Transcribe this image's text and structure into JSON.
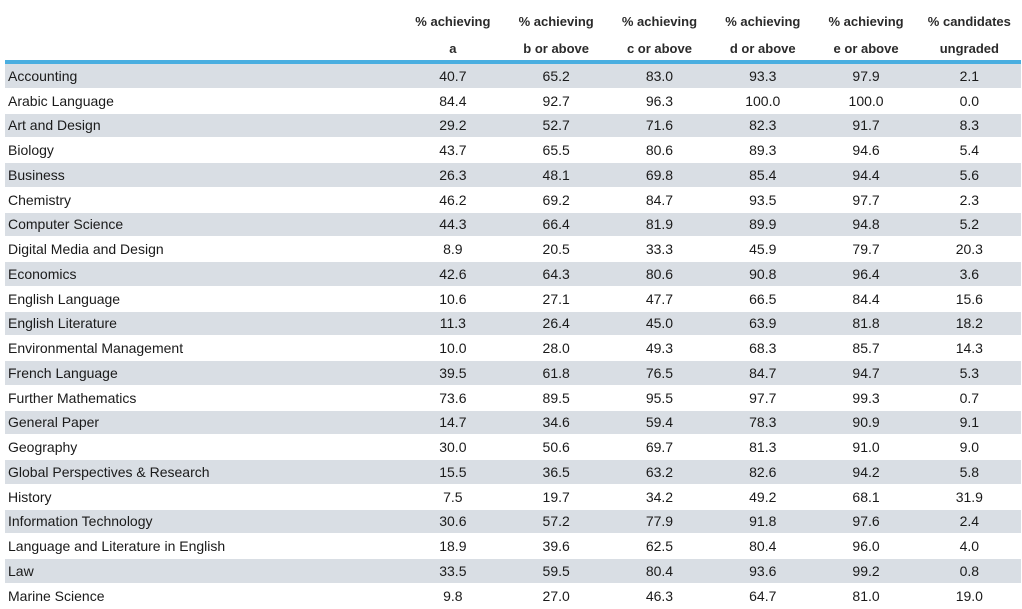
{
  "headers": [
    {
      "line1": "% achieving",
      "line2": "a"
    },
    {
      "line1": "% achieving",
      "line2": "b or above"
    },
    {
      "line1": "% achieving",
      "line2": "c or above"
    },
    {
      "line1": "% achieving",
      "line2": "d or above"
    },
    {
      "line1": "% achieving",
      "line2": "e or above"
    },
    {
      "line1": "% candidates",
      "line2": "ungraded"
    }
  ],
  "rows": [
    {
      "subject": "Accounting",
      "values": [
        "40.7",
        "65.2",
        "83.0",
        "93.3",
        "97.9",
        "2.1"
      ]
    },
    {
      "subject": "Arabic Language",
      "values": [
        "84.4",
        "92.7",
        "96.3",
        "100.0",
        "100.0",
        "0.0"
      ]
    },
    {
      "subject": "Art and Design",
      "values": [
        "29.2",
        "52.7",
        "71.6",
        "82.3",
        "91.7",
        "8.3"
      ]
    },
    {
      "subject": "Biology",
      "values": [
        "43.7",
        "65.5",
        "80.6",
        "89.3",
        "94.6",
        "5.4"
      ]
    },
    {
      "subject": "Business",
      "values": [
        "26.3",
        "48.1",
        "69.8",
        "85.4",
        "94.4",
        "5.6"
      ]
    },
    {
      "subject": "Chemistry",
      "values": [
        "46.2",
        "69.2",
        "84.7",
        "93.5",
        "97.7",
        "2.3"
      ]
    },
    {
      "subject": "Computer Science",
      "values": [
        "44.3",
        "66.4",
        "81.9",
        "89.9",
        "94.8",
        "5.2"
      ]
    },
    {
      "subject": "Digital Media and Design",
      "values": [
        "8.9",
        "20.5",
        "33.3",
        "45.9",
        "79.7",
        "20.3"
      ]
    },
    {
      "subject": "Economics",
      "values": [
        "42.6",
        "64.3",
        "80.6",
        "90.8",
        "96.4",
        "3.6"
      ]
    },
    {
      "subject": "English Language",
      "values": [
        "10.6",
        "27.1",
        "47.7",
        "66.5",
        "84.4",
        "15.6"
      ]
    },
    {
      "subject": "English Literature",
      "values": [
        "11.3",
        "26.4",
        "45.0",
        "63.9",
        "81.8",
        "18.2"
      ]
    },
    {
      "subject": "Environmental Management",
      "values": [
        "10.0",
        "28.0",
        "49.3",
        "68.3",
        "85.7",
        "14.3"
      ]
    },
    {
      "subject": "French Language",
      "values": [
        "39.5",
        "61.8",
        "76.5",
        "84.7",
        "94.7",
        "5.3"
      ]
    },
    {
      "subject": "Further Mathematics",
      "values": [
        "73.6",
        "89.5",
        "95.5",
        "97.7",
        "99.3",
        "0.7"
      ]
    },
    {
      "subject": "General Paper",
      "values": [
        "14.7",
        "34.6",
        "59.4",
        "78.3",
        "90.9",
        "9.1"
      ]
    },
    {
      "subject": "Geography",
      "values": [
        "30.0",
        "50.6",
        "69.7",
        "81.3",
        "91.0",
        "9.0"
      ]
    },
    {
      "subject": "Global Perspectives & Research",
      "values": [
        "15.5",
        "36.5",
        "63.2",
        "82.6",
        "94.2",
        "5.8"
      ]
    },
    {
      "subject": "History",
      "values": [
        "7.5",
        "19.7",
        "34.2",
        "49.2",
        "68.1",
        "31.9"
      ]
    },
    {
      "subject": "Information Technology",
      "values": [
        "30.6",
        "57.2",
        "77.9",
        "91.8",
        "97.6",
        "2.4"
      ]
    },
    {
      "subject": "Language and Literature in English",
      "values": [
        "18.9",
        "39.6",
        "62.5",
        "80.4",
        "96.0",
        "4.0"
      ]
    },
    {
      "subject": "Law",
      "values": [
        "33.5",
        "59.5",
        "80.4",
        "93.6",
        "99.2",
        "0.8"
      ]
    },
    {
      "subject": "Marine Science",
      "values": [
        "9.8",
        "27.0",
        "46.3",
        "64.7",
        "81.0",
        "19.0"
      ]
    }
  ]
}
